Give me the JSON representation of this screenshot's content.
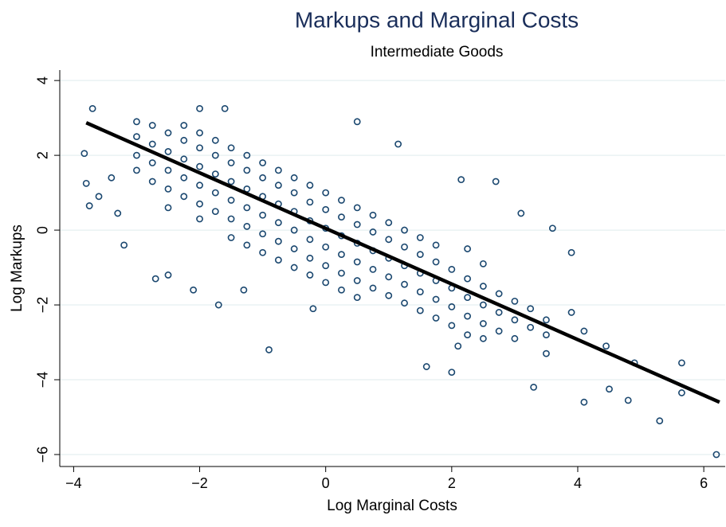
{
  "chart_data": {
    "type": "scatter",
    "title": "Markups and Marginal Costs",
    "subtitle": "Intermediate Goods",
    "x_label": "Log Marginal Costs",
    "y_label": "Log Markups",
    "xlim": [
      -4.22,
      6.34
    ],
    "ylim": [
      -6.32,
      4.28
    ],
    "xticks": [
      {
        "value": -4,
        "label": "−4"
      },
      {
        "value": -2,
        "label": "−2"
      },
      0,
      2,
      4,
      6
    ],
    "yticks": [
      {
        "value": -6,
        "label": "−6"
      },
      {
        "value": -4,
        "label": "−4"
      },
      {
        "value": -2,
        "label": "−2"
      },
      0,
      2,
      4
    ],
    "grid": true,
    "points": {
      "color": "#1a476f",
      "x": [
        -3,
        -3,
        -3,
        -3,
        -2.75,
        -2.75,
        -2.75,
        -2.75,
        -2.5,
        -2.5,
        -2.5,
        -2.5,
        -2.5,
        -2.25,
        -2.25,
        -2.25,
        -2.25,
        -2.25,
        -2,
        -2,
        -2,
        -2,
        -2,
        -2,
        -1.75,
        -1.75,
        -1.75,
        -1.75,
        -1.75,
        -1.5,
        -1.5,
        -1.5,
        -1.5,
        -1.5,
        -1.5,
        -1.25,
        -1.25,
        -1.25,
        -1.25,
        -1.25,
        -1.25,
        -1,
        -1,
        -1,
        -1,
        -1,
        -1,
        -0.75,
        -0.75,
        -0.75,
        -0.75,
        -0.75,
        -0.75,
        -0.5,
        -0.5,
        -0.5,
        -0.5,
        -0.5,
        -0.5,
        -0.25,
        -0.25,
        -0.25,
        -0.25,
        -0.25,
        -0.25,
        0,
        0,
        0,
        0,
        0,
        0,
        0.25,
        0.25,
        0.25,
        0.25,
        0.25,
        0.25,
        0.5,
        0.5,
        0.5,
        0.5,
        0.5,
        0.5,
        0.75,
        0.75,
        0.75,
        0.75,
        0.75,
        1,
        1,
        1,
        1,
        1,
        1.25,
        1.25,
        1.25,
        1.25,
        1.25,
        1.5,
        1.5,
        1.5,
        1.5,
        1.5,
        1.75,
        1.75,
        1.75,
        1.75,
        1.75,
        2,
        2,
        2,
        2,
        2.25,
        2.25,
        2.25,
        2.25,
        2.25,
        2.5,
        2.5,
        2.5,
        2.5,
        2.5,
        2.75,
        2.75,
        2.75,
        3,
        3,
        3,
        3.25,
        3.25,
        3.5,
        3.5,
        -3.7,
        -3.83,
        -3.8,
        -3.75,
        -3.2,
        -0.9,
        0.5,
        6.2,
        5.3,
        5.65,
        5.65,
        4.8,
        4.5,
        4.1,
        3.3,
        4.9,
        4.45,
        -1.6,
        -2,
        -2.7,
        -2.5,
        -1.7,
        -0.2,
        1.15,
        2.15,
        2.7,
        3.9,
        3.6,
        3.1,
        1.6,
        2,
        2.1,
        -2.1,
        -1.3,
        -3.4,
        -3.6,
        -3.3,
        3.9,
        4.1,
        3.5
      ],
      "y": [
        2.5,
        2,
        2.9,
        1.6,
        2.3,
        1.8,
        2.8,
        1.3,
        2.1,
        1.6,
        2.6,
        1.1,
        0.6,
        1.9,
        1.4,
        2.4,
        0.9,
        2.8,
        1.7,
        1.2,
        2.2,
        0.7,
        2.6,
        0.3,
        1.5,
        1,
        2,
        0.5,
        2.4,
        1.3,
        0.8,
        1.8,
        0.3,
        2.2,
        -0.2,
        1.1,
        0.6,
        1.6,
        0.1,
        2,
        -0.4,
        0.9,
        0.4,
        1.4,
        -0.1,
        1.8,
        -0.6,
        0.7,
        0.2,
        1.2,
        -0.3,
        1.6,
        -0.8,
        0.5,
        0,
        1,
        -0.5,
        1.4,
        -1,
        0.25,
        -0.25,
        0.75,
        -0.75,
        1.2,
        -1.2,
        0.05,
        -0.45,
        0.55,
        -0.95,
        1,
        -1.4,
        -0.15,
        -0.65,
        0.35,
        -1.15,
        0.8,
        -1.6,
        -0.35,
        -0.85,
        0.15,
        -1.35,
        0.6,
        -1.8,
        -0.55,
        -1.05,
        -0.05,
        -1.55,
        0.4,
        -0.75,
        -1.25,
        -0.25,
        -1.75,
        0.2,
        -0.95,
        -1.45,
        -0.45,
        -1.95,
        0,
        -1.15,
        -1.65,
        -0.65,
        -2.15,
        -0.2,
        -1.35,
        -1.85,
        -0.85,
        -2.35,
        -0.4,
        -1.55,
        -2.05,
        -1.05,
        -2.55,
        -1.8,
        -2.3,
        -1.3,
        -2.8,
        -0.5,
        -2,
        -2.5,
        -1.5,
        -2.9,
        -0.9,
        -2.2,
        -2.7,
        -1.7,
        -2.4,
        -2.9,
        -1.9,
        -2.6,
        -2.1,
        -2.8,
        -2.4,
        3.25,
        2.05,
        1.25,
        0.65,
        -0.4,
        -3.2,
        2.9,
        -6,
        -5.1,
        -4.35,
        -3.55,
        -4.55,
        -4.25,
        -4.6,
        -4.2,
        -3.55,
        -3.1,
        3.25,
        3.25,
        -1.3,
        -1.2,
        -2,
        -2.1,
        2.3,
        1.35,
        1.3,
        -0.6,
        0.05,
        0.45,
        -3.65,
        -3.8,
        -3.1,
        -1.6,
        -1.6,
        1.4,
        0.9,
        0.45,
        -2.2,
        -2.7,
        -3.3
      ]
    },
    "fit_line": {
      "color": "#000000",
      "x": [
        -3.8,
        6.25
      ],
      "y": [
        2.87,
        -4.6
      ]
    }
  }
}
